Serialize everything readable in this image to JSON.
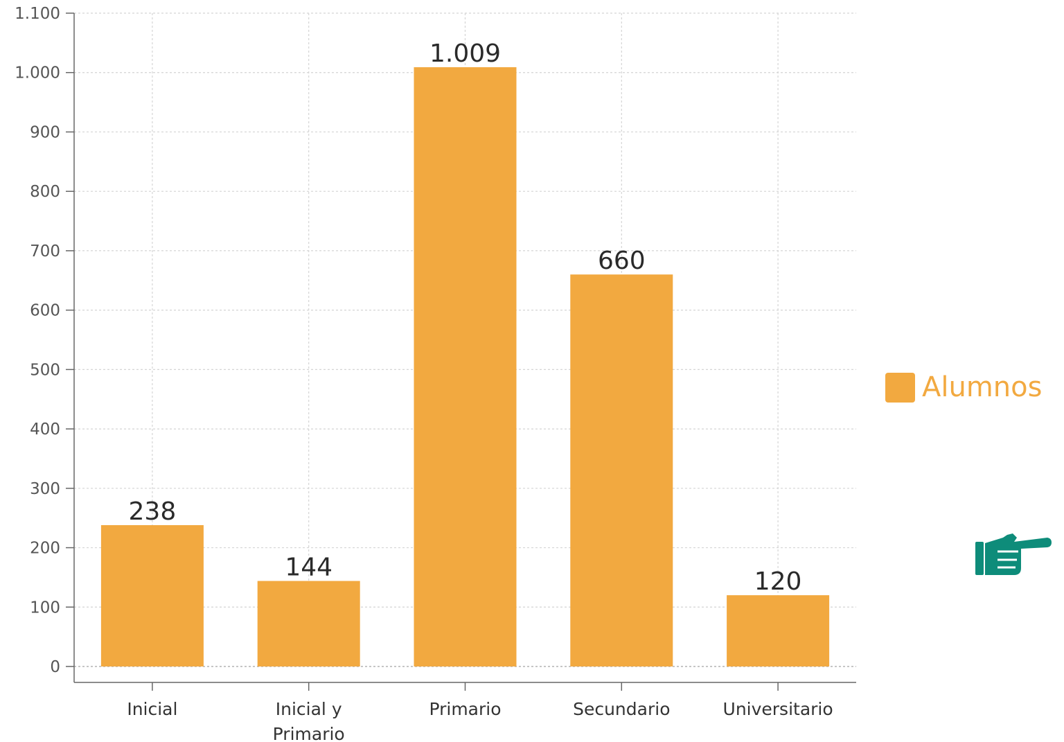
{
  "chart_data": {
    "type": "bar",
    "categories": [
      "Inicial",
      "Inicial y Primario",
      "Primario",
      "Secundario",
      "Universitario"
    ],
    "category_lines": [
      [
        "Inicial"
      ],
      [
        "Inicial y",
        "Primario"
      ],
      [
        "Primario"
      ],
      [
        "Secundario"
      ],
      [
        "Universitario"
      ]
    ],
    "series": [
      {
        "name": "Alumnos",
        "values": [
          238,
          144,
          1009,
          660,
          120
        ]
      }
    ],
    "value_labels": [
      "238",
      "144",
      "1.009",
      "660",
      "120"
    ],
    "ylim": [
      0,
      1100
    ],
    "yticks": [
      0,
      100,
      200,
      300,
      400,
      500,
      600,
      700,
      800,
      900,
      1000,
      1100
    ],
    "ytick_labels": [
      "0",
      "100",
      "200",
      "300",
      "400",
      "500",
      "600",
      "700",
      "800",
      "900",
      "1.000",
      "1.100"
    ],
    "xlabel": "",
    "ylabel": "",
    "grid": true,
    "legend_position": "right",
    "bar_color": "#F2A940",
    "legend_text_color": "#F2A940"
  },
  "icons": {
    "pointer": {
      "name": "pointing-hand-icon",
      "color": "#0E8C7A"
    }
  }
}
